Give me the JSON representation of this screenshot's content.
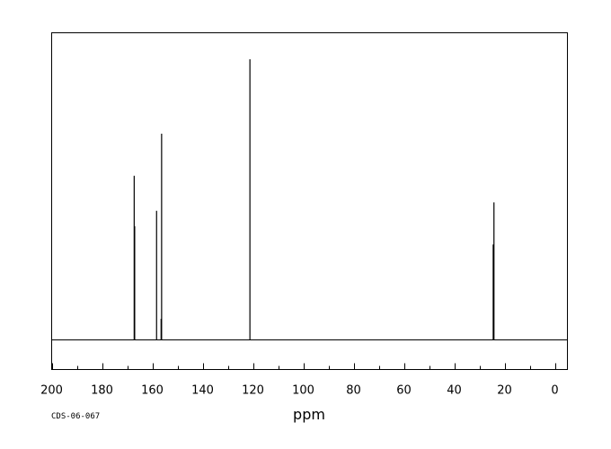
{
  "chart_data": {
    "type": "line",
    "title": "",
    "xlabel": "ppm",
    "ylabel": "",
    "xlim": [
      200,
      -5
    ],
    "x_reversed": true,
    "grid": false,
    "x_ticks": [
      200,
      180,
      160,
      140,
      120,
      100,
      80,
      60,
      40,
      20,
      0
    ],
    "peaks": [
      {
        "ppm": 167.2,
        "intensity": 0.585
      },
      {
        "ppm": 167.0,
        "intensity": 0.405
      },
      {
        "ppm": 158.3,
        "intensity": 0.46
      },
      {
        "ppm": 156.3,
        "intensity": 0.735
      },
      {
        "ppm": 156.5,
        "intensity": 0.075
      },
      {
        "ppm": 121.2,
        "intensity": 1.0
      },
      {
        "ppm": 24.2,
        "intensity": 0.49
      },
      {
        "ppm": 24.5,
        "intensity": 0.34
      }
    ],
    "footnote": "CDS-06-067"
  }
}
